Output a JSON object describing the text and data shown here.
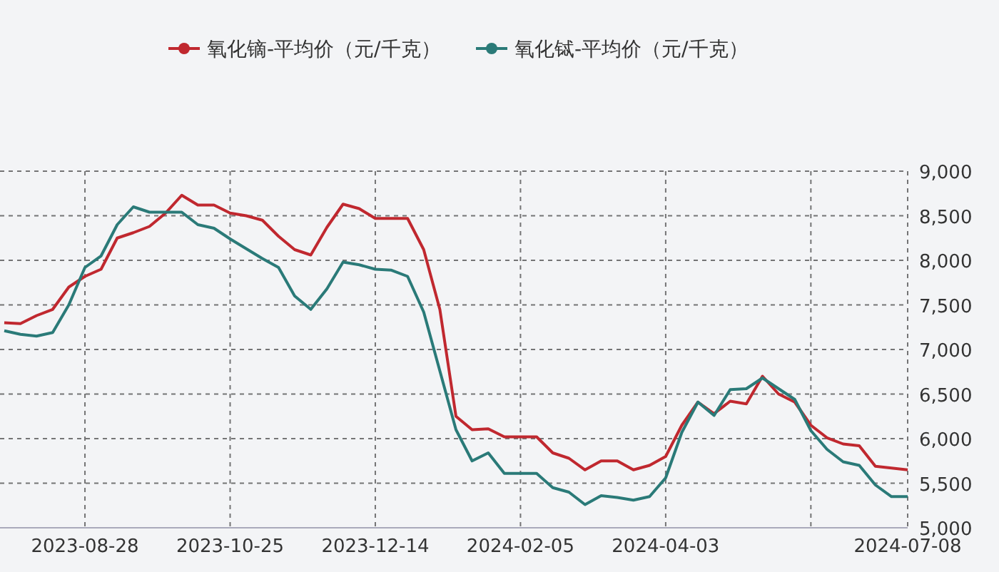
{
  "chart_data": {
    "type": "line",
    "categories": [
      null,
      null,
      null,
      null,
      null,
      "2023-08-28",
      null,
      null,
      null,
      null,
      null,
      null,
      null,
      null,
      "2023-10-25",
      null,
      null,
      null,
      null,
      null,
      null,
      null,
      null,
      "2023-12-14",
      null,
      null,
      null,
      null,
      null,
      null,
      null,
      null,
      "2024-02-05",
      null,
      null,
      null,
      null,
      null,
      null,
      null,
      null,
      "2024-04-03",
      null,
      null,
      null,
      null,
      null,
      null,
      null,
      null,
      null,
      null,
      null,
      null,
      null,
      null,
      "2024-07-08"
    ],
    "series": [
      {
        "name": "氧化镝-平均价（元/千克）",
        "color": "#c0282f",
        "values": [
          7300,
          7290,
          7380,
          7450,
          7700,
          7820,
          7900,
          8250,
          8310,
          8380,
          8530,
          8730,
          8620,
          8620,
          8530,
          8500,
          8450,
          8270,
          8120,
          8060,
          8370,
          8630,
          8580,
          8470,
          8470,
          8470,
          8120,
          7450,
          6250,
          6100,
          6110,
          6020,
          6020,
          6020,
          5840,
          5780,
          5650,
          5750,
          5750,
          5650,
          5700,
          5800,
          6150,
          6410,
          6280,
          6420,
          6390,
          6700,
          6500,
          6410,
          6150,
          6010,
          5940,
          5920,
          5690,
          5670,
          5650
        ]
      },
      {
        "name": "氧化铽-平均价（元/千克）",
        "color": "#2a7a78",
        "values": [
          7210,
          7170,
          7150,
          7190,
          7500,
          7920,
          8050,
          8400,
          8600,
          8540,
          8540,
          8540,
          8400,
          8360,
          8240,
          8130,
          8020,
          7920,
          7600,
          7450,
          7680,
          7980,
          7950,
          7900,
          7890,
          7820,
          7420,
          6760,
          6100,
          5750,
          5840,
          5610,
          5610,
          5610,
          5450,
          5400,
          5260,
          5360,
          5340,
          5310,
          5350,
          5560,
          6070,
          6410,
          6260,
          6550,
          6560,
          6680,
          6560,
          6440,
          6090,
          5880,
          5740,
          5700,
          5480,
          5350,
          5350
        ]
      }
    ],
    "ylim": [
      5000,
      9000
    ],
    "yticks": [
      {
        "value": 5000,
        "label": "5,000"
      },
      {
        "value": 5500,
        "label": "5,500"
      },
      {
        "value": 6000,
        "label": "6,000"
      },
      {
        "value": 6500,
        "label": "6,500"
      },
      {
        "value": 7000,
        "label": "7,000"
      },
      {
        "value": 7500,
        "label": "7,500"
      },
      {
        "value": 8000,
        "label": "8,000"
      },
      {
        "value": 8500,
        "label": "8,500"
      },
      {
        "value": 9000,
        "label": "9,000"
      }
    ],
    "grid": true,
    "legend": "top"
  }
}
